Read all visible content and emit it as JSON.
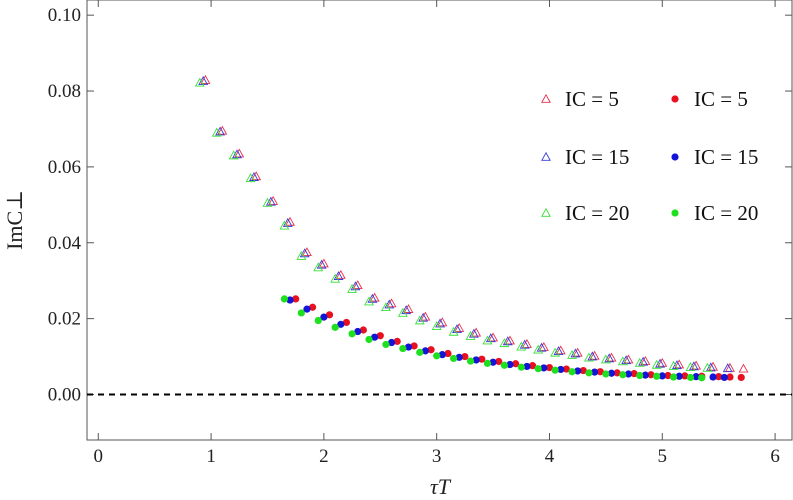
{
  "chart_data": {
    "type": "scatter",
    "xlabel": "τT",
    "ylabel": "ImC⊥",
    "xlim": [
      -0.1,
      6.15
    ],
    "ylim": [
      -0.012,
      0.104
    ],
    "xticks": [
      0,
      1,
      2,
      3,
      4,
      5,
      6
    ],
    "yticks": [
      0.0,
      0.02,
      0.04,
      0.06,
      0.08,
      0.1
    ],
    "xtick_labels": [
      "0",
      "1",
      "2",
      "3",
      "4",
      "5",
      "6"
    ],
    "ytick_labels": [
      "0.00",
      "0.02",
      "0.04",
      "0.06",
      "0.08",
      "0.10"
    ],
    "reference_line": {
      "y": 0.0,
      "style": "dashed",
      "color": "#000000"
    },
    "grid": false,
    "legend_position": "right",
    "legend_columns": 2,
    "series": [
      {
        "name": "IC = 5",
        "marker": "open-triangle",
        "color": "#e8304a",
        "x": [
          0.95,
          1.1,
          1.25,
          1.4,
          1.55,
          1.7,
          1.85,
          2.0,
          2.15,
          2.3,
          2.45,
          2.6,
          2.75,
          2.9,
          3.05,
          3.2,
          3.35,
          3.5,
          3.65,
          3.8,
          3.95,
          4.1,
          4.25,
          4.4,
          4.55,
          4.7,
          4.85,
          5.0,
          5.15,
          5.3,
          5.45,
          5.6,
          5.72
        ],
        "y": [
          0.0829,
          0.0695,
          0.0635,
          0.0575,
          0.051,
          0.0455,
          0.0375,
          0.0345,
          0.0315,
          0.0288,
          0.0255,
          0.024,
          0.0225,
          0.0205,
          0.019,
          0.0175,
          0.0163,
          0.015,
          0.0142,
          0.0133,
          0.0125,
          0.0116,
          0.011,
          0.0102,
          0.0097,
          0.0092,
          0.0088,
          0.0083,
          0.0079,
          0.0076,
          0.0073,
          0.007,
          0.0068
        ]
      },
      {
        "name": "IC = 15",
        "marker": "open-triangle",
        "color": "#3a3ad8",
        "x": [
          0.93,
          1.08,
          1.23,
          1.38,
          1.53,
          1.68,
          1.83,
          1.98,
          2.13,
          2.28,
          2.43,
          2.58,
          2.73,
          2.88,
          3.03,
          3.18,
          3.33,
          3.48,
          3.63,
          3.78,
          3.93,
          4.08,
          4.23,
          4.38,
          4.53,
          4.68,
          4.83,
          4.98,
          5.13,
          5.28,
          5.43,
          5.58
        ],
        "y": [
          0.0826,
          0.0693,
          0.0633,
          0.0573,
          0.0508,
          0.0452,
          0.0372,
          0.0342,
          0.0312,
          0.0285,
          0.0252,
          0.0237,
          0.0222,
          0.0202,
          0.0187,
          0.0172,
          0.016,
          0.0148,
          0.014,
          0.0131,
          0.0123,
          0.0114,
          0.0108,
          0.01,
          0.0095,
          0.009,
          0.0086,
          0.0081,
          0.0077,
          0.0074,
          0.0071,
          0.0069
        ]
      },
      {
        "name": "IC = 20",
        "marker": "open-triangle",
        "color": "#38e038",
        "x": [
          0.9,
          1.05,
          1.2,
          1.35,
          1.5,
          1.65,
          1.8,
          1.95,
          2.1,
          2.25,
          2.4,
          2.55,
          2.7,
          2.85,
          3.0,
          3.15,
          3.3,
          3.45,
          3.6,
          3.75,
          3.9,
          4.05,
          4.2,
          4.35,
          4.5,
          4.65,
          4.8,
          4.95,
          5.1,
          5.25,
          5.4
        ],
        "y": [
          0.0822,
          0.069,
          0.063,
          0.057,
          0.0505,
          0.0445,
          0.0365,
          0.0335,
          0.0305,
          0.0278,
          0.0245,
          0.023,
          0.0215,
          0.0195,
          0.018,
          0.0165,
          0.0154,
          0.0142,
          0.0135,
          0.0126,
          0.0118,
          0.011,
          0.0104,
          0.0097,
          0.0092,
          0.0087,
          0.0083,
          0.0078,
          0.0075,
          0.0072,
          0.007
        ]
      },
      {
        "name": "IC = 5",
        "marker": "filled-circle",
        "color": "#e8101e",
        "x": [
          1.75,
          1.9,
          2.05,
          2.2,
          2.35,
          2.5,
          2.65,
          2.8,
          2.95,
          3.1,
          3.25,
          3.4,
          3.55,
          3.7,
          3.85,
          4.0,
          4.15,
          4.3,
          4.45,
          4.6,
          4.75,
          4.9,
          5.05,
          5.2,
          5.35,
          5.5,
          5.6,
          5.7
        ],
        "y": [
          0.0252,
          0.023,
          0.021,
          0.019,
          0.017,
          0.0155,
          0.014,
          0.0128,
          0.0118,
          0.0108,
          0.01,
          0.0093,
          0.0087,
          0.0081,
          0.0076,
          0.0071,
          0.0067,
          0.0063,
          0.006,
          0.0057,
          0.0055,
          0.0052,
          0.005,
          0.0049,
          0.0048,
          0.0047,
          0.0046,
          0.0045
        ]
      },
      {
        "name": "IC = 15",
        "marker": "filled-circle",
        "color": "#1414d8",
        "x": [
          1.7,
          1.85,
          2.0,
          2.15,
          2.3,
          2.45,
          2.6,
          2.75,
          2.9,
          3.05,
          3.2,
          3.35,
          3.5,
          3.65,
          3.8,
          3.95,
          4.1,
          4.25,
          4.4,
          4.55,
          4.7,
          4.85,
          5.0,
          5.15,
          5.3,
          5.45,
          5.55
        ],
        "y": [
          0.0249,
          0.0225,
          0.0204,
          0.0185,
          0.0166,
          0.0151,
          0.0137,
          0.0125,
          0.0115,
          0.0105,
          0.0098,
          0.0091,
          0.0085,
          0.0079,
          0.0074,
          0.007,
          0.0066,
          0.0062,
          0.0059,
          0.0056,
          0.0054,
          0.0051,
          0.0049,
          0.0048,
          0.0047,
          0.0046,
          0.0045
        ]
      },
      {
        "name": "IC = 20",
        "marker": "filled-circle",
        "color": "#1ee01e",
        "x": [
          1.65,
          1.8,
          1.95,
          2.1,
          2.25,
          2.4,
          2.55,
          2.7,
          2.85,
          3.0,
          3.15,
          3.3,
          3.45,
          3.6,
          3.75,
          3.9,
          4.05,
          4.2,
          4.35,
          4.5,
          4.65,
          4.8,
          4.95,
          5.1,
          5.25,
          5.35
        ],
        "y": [
          0.0252,
          0.0215,
          0.0195,
          0.0177,
          0.016,
          0.0145,
          0.0132,
          0.0121,
          0.0111,
          0.0102,
          0.0095,
          0.0088,
          0.0082,
          0.0077,
          0.0072,
          0.0068,
          0.0064,
          0.006,
          0.0057,
          0.0054,
          0.0052,
          0.005,
          0.0048,
          0.0046,
          0.0045,
          0.0044
        ]
      }
    ]
  }
}
